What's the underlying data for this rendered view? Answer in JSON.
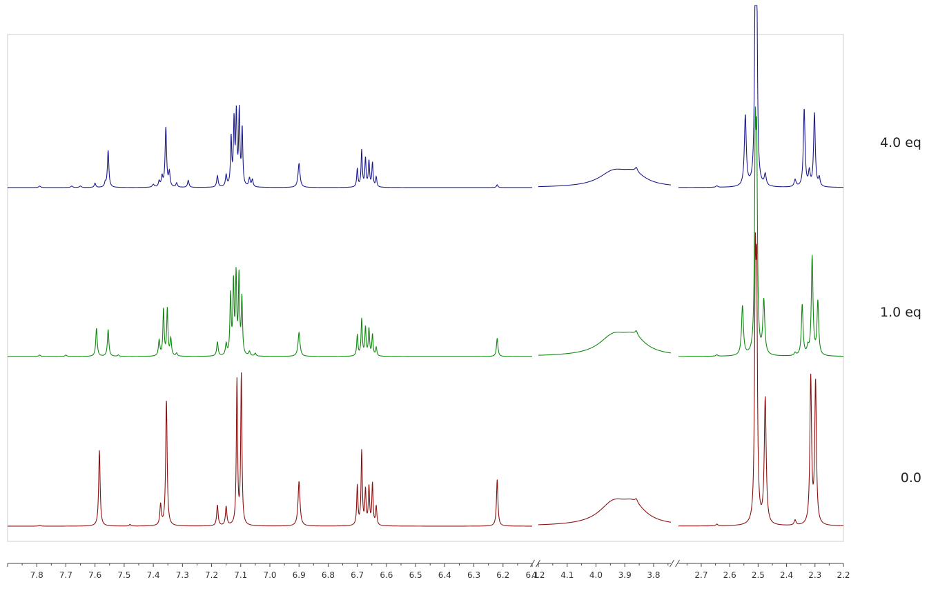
{
  "chart_data": {
    "type": "line",
    "title": "",
    "xlabel": "",
    "ylabel": "",
    "x_unit": "ppm",
    "x_reversed": true,
    "grid": false,
    "axis_segments": [
      {
        "from": 7.9,
        "to": 6.1,
        "ticks": [
          "7.8",
          "7.7",
          "7.6",
          "7.5",
          "7.4",
          "7.3",
          "7.2",
          "7.1",
          "7.0",
          "6.9",
          "6.8",
          "6.7",
          "6.6",
          "6.5",
          "6.4",
          "6.3",
          "6.2",
          "6.1"
        ]
      },
      {
        "from": 4.2,
        "to": 3.74,
        "ticks": [
          "4.2",
          "4.1",
          "4.0",
          "3.9",
          "3.8"
        ]
      },
      {
        "from": 2.78,
        "to": 2.2,
        "ticks": [
          "2.7",
          "2.6",
          "2.5",
          "2.4",
          "2.3",
          "2.2"
        ]
      }
    ],
    "series": [
      {
        "name": "4.0 eq",
        "color": "#1a1a8c",
        "peaks": [
          {
            "x": 7.79,
            "h": 0.01,
            "w": 0.004
          },
          {
            "x": 7.68,
            "h": 0.01,
            "w": 0.004
          },
          {
            "x": 7.65,
            "h": 0.01,
            "w": 0.004
          },
          {
            "x": 7.6,
            "h": 0.03,
            "w": 0.003
          },
          {
            "x": 7.555,
            "h": 0.26,
            "w": 0.003
          },
          {
            "x": 7.565,
            "h": 0.03,
            "w": 0.003
          },
          {
            "x": 7.4,
            "h": 0.02,
            "w": 0.004
          },
          {
            "x": 7.38,
            "h": 0.04,
            "w": 0.003
          },
          {
            "x": 7.37,
            "h": 0.07,
            "w": 0.003
          },
          {
            "x": 7.357,
            "h": 0.42,
            "w": 0.003
          },
          {
            "x": 7.345,
            "h": 0.1,
            "w": 0.003
          },
          {
            "x": 7.32,
            "h": 0.03,
            "w": 0.003
          },
          {
            "x": 7.28,
            "h": 0.05,
            "w": 0.003
          },
          {
            "x": 7.18,
            "h": 0.08,
            "w": 0.003
          },
          {
            "x": 7.15,
            "h": 0.08,
            "w": 0.003
          },
          {
            "x": 7.133,
            "h": 0.34,
            "w": 0.0025
          },
          {
            "x": 7.123,
            "h": 0.45,
            "w": 0.0025
          },
          {
            "x": 7.115,
            "h": 0.5,
            "w": 0.0025
          },
          {
            "x": 7.105,
            "h": 0.52,
            "w": 0.0025
          },
          {
            "x": 7.095,
            "h": 0.4,
            "w": 0.0025
          },
          {
            "x": 7.07,
            "h": 0.06,
            "w": 0.003
          },
          {
            "x": 7.06,
            "h": 0.05,
            "w": 0.003
          },
          {
            "x": 6.9,
            "h": 0.17,
            "w": 0.004
          },
          {
            "x": 6.7,
            "h": 0.13,
            "w": 0.0025
          },
          {
            "x": 6.685,
            "h": 0.26,
            "w": 0.0025
          },
          {
            "x": 6.672,
            "h": 0.2,
            "w": 0.0025
          },
          {
            "x": 6.66,
            "h": 0.18,
            "w": 0.0025
          },
          {
            "x": 6.648,
            "h": 0.17,
            "w": 0.0025
          },
          {
            "x": 6.635,
            "h": 0.07,
            "w": 0.0025
          },
          {
            "x": 6.22,
            "h": 0.02,
            "w": 0.003
          },
          {
            "x": 3.94,
            "h": 0.1,
            "w": 0.06
          },
          {
            "x": 3.87,
            "h": 0.08,
            "w": 0.05
          },
          {
            "x": 3.86,
            "h": 0.03,
            "w": 0.005
          },
          {
            "x": 2.645,
            "h": 0.01,
            "w": 0.004
          },
          {
            "x": 2.545,
            "h": 0.5,
            "w": 0.004
          },
          {
            "x": 2.51,
            "h": 1.4,
            "w": 0.003
          },
          {
            "x": 2.505,
            "h": 1.3,
            "w": 0.003
          },
          {
            "x": 2.475,
            "h": 0.08,
            "w": 0.004
          },
          {
            "x": 2.37,
            "h": 0.05,
            "w": 0.004
          },
          {
            "x": 2.338,
            "h": 0.55,
            "w": 0.0035
          },
          {
            "x": 2.32,
            "h": 0.1,
            "w": 0.0035
          },
          {
            "x": 2.302,
            "h": 0.52,
            "w": 0.0035
          },
          {
            "x": 2.285,
            "h": 0.06,
            "w": 0.0035
          }
        ]
      },
      {
        "name": "1.0 eq",
        "color": "#118811",
        "peaks": [
          {
            "x": 7.79,
            "h": 0.01,
            "w": 0.004
          },
          {
            "x": 7.7,
            "h": 0.01,
            "w": 0.004
          },
          {
            "x": 7.595,
            "h": 0.2,
            "w": 0.003
          },
          {
            "x": 7.555,
            "h": 0.19,
            "w": 0.003
          },
          {
            "x": 7.52,
            "h": 0.01,
            "w": 0.003
          },
          {
            "x": 7.38,
            "h": 0.11,
            "w": 0.003
          },
          {
            "x": 7.365,
            "h": 0.33,
            "w": 0.0025
          },
          {
            "x": 7.352,
            "h": 0.33,
            "w": 0.0025
          },
          {
            "x": 7.34,
            "h": 0.12,
            "w": 0.003
          },
          {
            "x": 7.32,
            "h": 0.02,
            "w": 0.003
          },
          {
            "x": 7.18,
            "h": 0.1,
            "w": 0.003
          },
          {
            "x": 7.15,
            "h": 0.08,
            "w": 0.003
          },
          {
            "x": 7.135,
            "h": 0.42,
            "w": 0.0025
          },
          {
            "x": 7.125,
            "h": 0.5,
            "w": 0.0025
          },
          {
            "x": 7.116,
            "h": 0.55,
            "w": 0.0025
          },
          {
            "x": 7.106,
            "h": 0.55,
            "w": 0.0025
          },
          {
            "x": 7.096,
            "h": 0.4,
            "w": 0.0025
          },
          {
            "x": 7.07,
            "h": 0.03,
            "w": 0.003
          },
          {
            "x": 7.05,
            "h": 0.02,
            "w": 0.003
          },
          {
            "x": 6.9,
            "h": 0.17,
            "w": 0.004
          },
          {
            "x": 6.7,
            "h": 0.15,
            "w": 0.0025
          },
          {
            "x": 6.685,
            "h": 0.26,
            "w": 0.0025
          },
          {
            "x": 6.672,
            "h": 0.2,
            "w": 0.0025
          },
          {
            "x": 6.66,
            "h": 0.19,
            "w": 0.0025
          },
          {
            "x": 6.648,
            "h": 0.15,
            "w": 0.0025
          },
          {
            "x": 6.635,
            "h": 0.06,
            "w": 0.0025
          },
          {
            "x": 6.22,
            "h": 0.13,
            "w": 0.003
          },
          {
            "x": 3.94,
            "h": 0.13,
            "w": 0.06
          },
          {
            "x": 3.87,
            "h": 0.11,
            "w": 0.05
          },
          {
            "x": 3.86,
            "h": 0.03,
            "w": 0.005
          },
          {
            "x": 2.645,
            "h": 0.01,
            "w": 0.004
          },
          {
            "x": 2.555,
            "h": 0.35,
            "w": 0.004
          },
          {
            "x": 2.51,
            "h": 1.4,
            "w": 0.003
          },
          {
            "x": 2.505,
            "h": 1.3,
            "w": 0.003
          },
          {
            "x": 2.48,
            "h": 0.38,
            "w": 0.004
          },
          {
            "x": 2.37,
            "h": 0.02,
            "w": 0.004
          },
          {
            "x": 2.345,
            "h": 0.36,
            "w": 0.0035
          },
          {
            "x": 2.325,
            "h": 0.05,
            "w": 0.0035
          },
          {
            "x": 2.31,
            "h": 0.7,
            "w": 0.0035
          },
          {
            "x": 2.29,
            "h": 0.38,
            "w": 0.0035
          }
        ]
      },
      {
        "name": "0.0",
        "color": "#8b1010",
        "peaks": [
          {
            "x": 7.79,
            "h": 0.005,
            "w": 0.004
          },
          {
            "x": 7.585,
            "h": 0.44,
            "w": 0.003
          },
          {
            "x": 7.48,
            "h": 0.01,
            "w": 0.003
          },
          {
            "x": 7.375,
            "h": 0.12,
            "w": 0.003
          },
          {
            "x": 7.355,
            "h": 0.73,
            "w": 0.003
          },
          {
            "x": 7.18,
            "h": 0.12,
            "w": 0.003
          },
          {
            "x": 7.15,
            "h": 0.11,
            "w": 0.003
          },
          {
            "x": 7.113,
            "h": 0.84,
            "w": 0.0025
          },
          {
            "x": 7.098,
            "h": 0.87,
            "w": 0.0025
          },
          {
            "x": 6.9,
            "h": 0.26,
            "w": 0.004
          },
          {
            "x": 6.7,
            "h": 0.23,
            "w": 0.0025
          },
          {
            "x": 6.685,
            "h": 0.43,
            "w": 0.0025
          },
          {
            "x": 6.672,
            "h": 0.2,
            "w": 0.0025
          },
          {
            "x": 6.66,
            "h": 0.22,
            "w": 0.0025
          },
          {
            "x": 6.648,
            "h": 0.24,
            "w": 0.0025
          },
          {
            "x": 6.635,
            "h": 0.11,
            "w": 0.0025
          },
          {
            "x": 6.22,
            "h": 0.27,
            "w": 0.003
          },
          {
            "x": 3.94,
            "h": 0.12,
            "w": 0.06
          },
          {
            "x": 3.87,
            "h": 0.1,
            "w": 0.05
          },
          {
            "x": 3.86,
            "h": 0.02,
            "w": 0.005
          },
          {
            "x": 2.645,
            "h": 0.01,
            "w": 0.004
          },
          {
            "x": 2.51,
            "h": 1.35,
            "w": 0.003
          },
          {
            "x": 2.505,
            "h": 1.25,
            "w": 0.003
          },
          {
            "x": 2.475,
            "h": 0.73,
            "w": 0.004
          },
          {
            "x": 2.37,
            "h": 0.03,
            "w": 0.004
          },
          {
            "x": 2.315,
            "h": 0.85,
            "w": 0.0035
          },
          {
            "x": 2.298,
            "h": 0.82,
            "w": 0.0035
          }
        ]
      }
    ]
  }
}
